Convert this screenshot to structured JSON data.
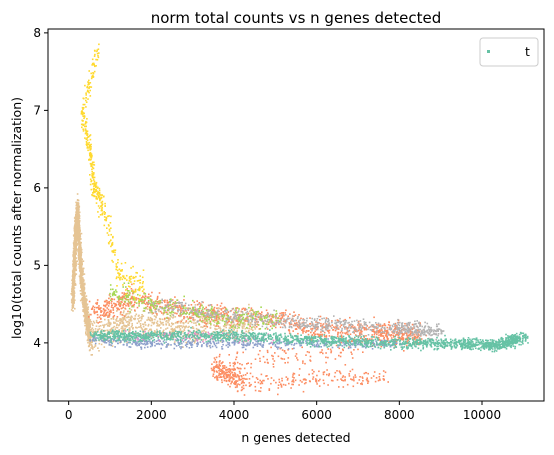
{
  "chart_data": {
    "type": "scatter",
    "title": "norm total counts vs n genes detected",
    "xlabel": "n genes detected",
    "ylabel": "log10(total counts after normalization)",
    "xlim": [
      -500,
      11500
    ],
    "ylim": [
      3.25,
      8.05
    ],
    "xticks": [
      0,
      2000,
      4000,
      6000,
      8000,
      10000
    ],
    "yticks": [
      4,
      5,
      6,
      7,
      8
    ],
    "grid": false,
    "legend": {
      "position": "top-right",
      "entries": [
        {
          "label": "t",
          "color": "#66c2a5"
        }
      ]
    },
    "series": [
      {
        "color": "#e5c494",
        "description_points": [
          [
            80,
            4.55
          ],
          [
            120,
            5.0
          ],
          [
            150,
            5.4
          ],
          [
            200,
            5.7
          ],
          [
            250,
            5.2
          ],
          [
            300,
            4.8
          ],
          [
            400,
            4.4
          ],
          [
            500,
            4.1
          ],
          [
            1500,
            4.3
          ],
          [
            3000,
            4.2
          ],
          [
            4500,
            4.25
          ]
        ]
      },
      {
        "color": "#fc8d62",
        "description_points": [
          [
            600,
            4.4
          ],
          [
            1500,
            4.6
          ],
          [
            3000,
            4.4
          ],
          [
            4500,
            4.35
          ],
          [
            6000,
            4.2
          ],
          [
            7500,
            4.15
          ],
          [
            8500,
            4.1
          ],
          [
            3500,
            3.7
          ],
          [
            4200,
            3.5
          ],
          [
            7600,
            3.58
          ]
        ]
      },
      {
        "color": "#b3b3b3",
        "description_points": [
          [
            2000,
            4.5
          ],
          [
            4000,
            4.35
          ],
          [
            6000,
            4.25
          ],
          [
            8000,
            4.2
          ],
          [
            9000,
            4.15
          ]
        ]
      },
      {
        "color": "#8da0cb",
        "description_points": [
          [
            500,
            4.05
          ],
          [
            2000,
            4.0
          ],
          [
            4000,
            4.0
          ],
          [
            6000,
            4.0
          ],
          [
            8000,
            4.0
          ]
        ]
      },
      {
        "color": "#a6d854",
        "description_points": [
          [
            1000,
            4.7
          ],
          [
            2000,
            4.5
          ],
          [
            3500,
            4.35
          ],
          [
            5000,
            4.3
          ]
        ]
      },
      {
        "color": "#ffd92f",
        "description_points": [
          [
            700,
            7.8
          ],
          [
            300,
            7.0
          ],
          [
            500,
            6.5
          ],
          [
            600,
            6.0
          ],
          [
            800,
            5.8
          ],
          [
            1200,
            4.9
          ],
          [
            1800,
            4.7
          ]
        ]
      },
      {
        "color": "#e78ac3",
        "description_points": [
          [
            1500,
            4.1
          ],
          [
            3000,
            4.1
          ],
          [
            5000,
            4.05
          ]
        ]
      },
      {
        "color": "#66c2a5",
        "description_points": [
          [
            600,
            4.1
          ],
          [
            2000,
            4.1
          ],
          [
            4000,
            4.1
          ],
          [
            6000,
            4.05
          ],
          [
            8000,
            4.0
          ],
          [
            9500,
            4.0
          ],
          [
            10400,
            3.98
          ],
          [
            11000,
            4.08
          ]
        ]
      }
    ]
  }
}
